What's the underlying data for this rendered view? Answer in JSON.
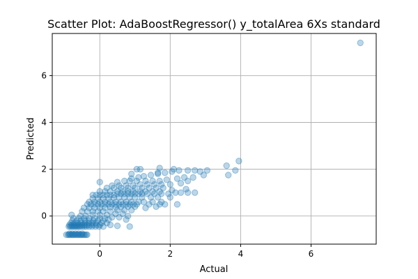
{
  "chart_data": {
    "type": "scatter",
    "title": "Scatter Plot: AdaBoostRegressor() y_totalArea 6Xs standard",
    "xlabel": "Actual",
    "ylabel": "Predicted",
    "xlim": [
      -1.35,
      7.85
    ],
    "ylim": [
      -1.2,
      7.8
    ],
    "xticks": [
      0,
      2,
      4,
      6
    ],
    "yticks": [
      0,
      2,
      4,
      6
    ],
    "grid": true,
    "marker_color": "#1f77b4",
    "marker_alpha": 0.3,
    "series": [
      {
        "points": [
          [
            -0.95,
            -0.8
          ],
          [
            -0.9,
            -0.8
          ],
          [
            -0.87,
            -0.8
          ],
          [
            -0.84,
            -0.8
          ],
          [
            -0.8,
            -0.8
          ],
          [
            -0.77,
            -0.8
          ],
          [
            -0.74,
            -0.8
          ],
          [
            -0.7,
            -0.8
          ],
          [
            -0.67,
            -0.8
          ],
          [
            -0.63,
            -0.8
          ],
          [
            -0.6,
            -0.8
          ],
          [
            -0.56,
            -0.8
          ],
          [
            -0.53,
            -0.8
          ],
          [
            -0.5,
            -0.8
          ],
          [
            -0.46,
            -0.8
          ],
          [
            -0.43,
            -0.8
          ],
          [
            -0.39,
            -0.8
          ],
          [
            -0.36,
            -0.8
          ],
          [
            -0.86,
            -0.75
          ],
          [
            -0.78,
            -0.75
          ],
          [
            -0.69,
            -0.75
          ],
          [
            -0.6,
            -0.75
          ],
          [
            -0.5,
            -0.75
          ],
          [
            -0.88,
            -0.45
          ],
          [
            -0.84,
            -0.45
          ],
          [
            -0.8,
            -0.45
          ],
          [
            -0.76,
            -0.45
          ],
          [
            -0.72,
            -0.45
          ],
          [
            -0.68,
            -0.45
          ],
          [
            -0.64,
            -0.45
          ],
          [
            -0.6,
            -0.45
          ],
          [
            -0.56,
            -0.45
          ],
          [
            -0.5,
            -0.45
          ],
          [
            -0.44,
            -0.45
          ],
          [
            -0.38,
            -0.45
          ],
          [
            -0.3,
            -0.45
          ],
          [
            -0.22,
            -0.45
          ],
          [
            -0.12,
            -0.45
          ],
          [
            -0.02,
            -0.45
          ],
          [
            0.1,
            -0.45
          ],
          [
            -0.86,
            -0.38
          ],
          [
            -0.8,
            -0.38
          ],
          [
            -0.74,
            -0.38
          ],
          [
            -0.68,
            -0.38
          ],
          [
            -0.62,
            -0.38
          ],
          [
            -0.56,
            -0.38
          ],
          [
            -0.5,
            -0.38
          ],
          [
            -0.44,
            -0.38
          ],
          [
            -0.38,
            -0.38
          ],
          [
            -0.3,
            -0.38
          ],
          [
            -0.2,
            -0.38
          ],
          [
            -0.1,
            -0.38
          ],
          [
            0.0,
            -0.38
          ],
          [
            0.3,
            -0.38
          ],
          [
            0.5,
            -0.42
          ],
          [
            0.85,
            -0.45
          ],
          [
            -0.82,
            -0.3
          ],
          [
            -0.72,
            -0.3
          ],
          [
            -0.62,
            -0.3
          ],
          [
            -0.52,
            -0.3
          ],
          [
            -0.42,
            -0.3
          ],
          [
            -0.32,
            -0.3
          ],
          [
            -0.22,
            -0.3
          ],
          [
            -0.12,
            -0.3
          ],
          [
            0.05,
            -0.3
          ],
          [
            0.2,
            -0.3
          ],
          [
            -0.78,
            -0.2
          ],
          [
            -0.66,
            -0.2
          ],
          [
            -0.54,
            -0.2
          ],
          [
            -0.42,
            -0.2
          ],
          [
            -0.3,
            -0.2
          ],
          [
            -0.18,
            -0.2
          ],
          [
            -0.06,
            -0.2
          ],
          [
            0.1,
            -0.2
          ],
          [
            0.25,
            -0.15
          ],
          [
            -0.75,
            -0.1
          ],
          [
            -0.6,
            -0.1
          ],
          [
            -0.45,
            -0.1
          ],
          [
            -0.3,
            -0.1
          ],
          [
            -0.15,
            -0.1
          ],
          [
            0.0,
            -0.1
          ],
          [
            0.15,
            -0.1
          ],
          [
            0.35,
            -0.05
          ],
          [
            0.55,
            -0.05
          ],
          [
            0.75,
            -0.15
          ],
          [
            0.8,
            0.0
          ],
          [
            -0.8,
            0.05
          ],
          [
            -0.55,
            0.0
          ],
          [
            -0.4,
            0.0
          ],
          [
            -0.2,
            0.05
          ],
          [
            0.0,
            0.05
          ],
          [
            0.2,
            0.05
          ],
          [
            0.45,
            0.1
          ],
          [
            0.65,
            0.1
          ],
          [
            -0.5,
            0.2
          ],
          [
            -0.35,
            0.2
          ],
          [
            -0.2,
            0.2
          ],
          [
            -0.05,
            0.2
          ],
          [
            0.1,
            0.2
          ],
          [
            0.3,
            0.2
          ],
          [
            0.5,
            0.25
          ],
          [
            0.7,
            0.25
          ],
          [
            0.9,
            0.25
          ],
          [
            -0.45,
            0.35
          ],
          [
            -0.3,
            0.35
          ],
          [
            -0.15,
            0.35
          ],
          [
            0.0,
            0.35
          ],
          [
            0.15,
            0.35
          ],
          [
            0.3,
            0.38
          ],
          [
            0.45,
            0.38
          ],
          [
            0.6,
            0.38
          ],
          [
            0.8,
            0.4
          ],
          [
            1.0,
            0.4
          ],
          [
            1.3,
            0.35
          ],
          [
            1.6,
            0.4
          ],
          [
            -0.35,
            0.5
          ],
          [
            -0.25,
            0.5
          ],
          [
            -0.15,
            0.5
          ],
          [
            -0.05,
            0.5
          ],
          [
            0.05,
            0.5
          ],
          [
            0.15,
            0.5
          ],
          [
            0.25,
            0.5
          ],
          [
            0.35,
            0.5
          ],
          [
            0.45,
            0.5
          ],
          [
            0.55,
            0.5
          ],
          [
            0.65,
            0.5
          ],
          [
            0.75,
            0.5
          ],
          [
            0.85,
            0.5
          ],
          [
            0.95,
            0.5
          ],
          [
            1.05,
            0.5
          ],
          [
            1.4,
            0.5
          ],
          [
            1.7,
            0.5
          ],
          [
            1.85,
            0.5
          ],
          [
            2.2,
            0.5
          ],
          [
            -0.3,
            0.6
          ],
          [
            -0.15,
            0.6
          ],
          [
            0.0,
            0.6
          ],
          [
            0.15,
            0.6
          ],
          [
            0.3,
            0.6
          ],
          [
            0.45,
            0.6
          ],
          [
            0.6,
            0.6
          ],
          [
            0.75,
            0.6
          ],
          [
            0.9,
            0.6
          ],
          [
            1.1,
            0.6
          ],
          [
            1.25,
            0.6
          ],
          [
            1.5,
            0.6
          ],
          [
            1.75,
            0.6
          ],
          [
            -0.2,
            0.75
          ],
          [
            -0.05,
            0.75
          ],
          [
            0.1,
            0.75
          ],
          [
            0.25,
            0.75
          ],
          [
            0.4,
            0.78
          ],
          [
            0.55,
            0.8
          ],
          [
            0.7,
            0.8
          ],
          [
            0.85,
            0.8
          ],
          [
            1.0,
            0.8
          ],
          [
            1.2,
            0.8
          ],
          [
            1.45,
            0.8
          ],
          [
            1.65,
            0.8
          ],
          [
            2.0,
            0.8
          ],
          [
            -0.2,
            0.9
          ],
          [
            -0.1,
            0.9
          ],
          [
            0.0,
            0.9
          ],
          [
            0.1,
            0.9
          ],
          [
            0.2,
            0.9
          ],
          [
            0.3,
            0.9
          ],
          [
            0.4,
            0.9
          ],
          [
            0.5,
            0.95
          ],
          [
            0.6,
            0.95
          ],
          [
            0.7,
            0.95
          ],
          [
            0.8,
            0.95
          ],
          [
            0.9,
            0.95
          ],
          [
            1.0,
            0.95
          ],
          [
            1.1,
            0.95
          ],
          [
            1.2,
            0.95
          ],
          [
            1.35,
            0.95
          ],
          [
            1.55,
            0.95
          ],
          [
            1.75,
            0.95
          ],
          [
            1.95,
            0.95
          ],
          [
            2.15,
            1.0
          ],
          [
            2.3,
            1.0
          ],
          [
            2.5,
            1.0
          ],
          [
            2.7,
            1.0
          ],
          [
            0.0,
            1.05
          ],
          [
            0.15,
            1.05
          ],
          [
            0.3,
            1.05
          ],
          [
            0.5,
            1.05
          ],
          [
            0.65,
            1.05
          ],
          [
            0.8,
            1.05
          ],
          [
            0.95,
            1.05
          ],
          [
            1.15,
            1.05
          ],
          [
            1.3,
            1.05
          ],
          [
            1.5,
            1.05
          ],
          [
            1.7,
            1.05
          ],
          [
            2.05,
            1.1
          ],
          [
            2.45,
            1.15
          ],
          [
            0.2,
            1.2
          ],
          [
            0.4,
            1.2
          ],
          [
            0.6,
            1.2
          ],
          [
            0.8,
            1.2
          ],
          [
            1.0,
            1.2
          ],
          [
            1.2,
            1.2
          ],
          [
            1.4,
            1.2
          ],
          [
            1.6,
            1.2
          ],
          [
            1.8,
            1.2
          ],
          [
            0.35,
            1.3
          ],
          [
            0.55,
            1.3
          ],
          [
            0.75,
            1.3
          ],
          [
            0.95,
            1.3
          ],
          [
            1.15,
            1.35
          ],
          [
            1.35,
            1.35
          ],
          [
            1.55,
            1.35
          ],
          [
            1.75,
            1.35
          ],
          [
            2.0,
            1.35
          ],
          [
            2.3,
            1.4
          ],
          [
            2.5,
            1.5
          ],
          [
            0.0,
            1.45
          ],
          [
            0.5,
            1.45
          ],
          [
            0.7,
            1.5
          ],
          [
            0.85,
            1.5
          ],
          [
            1.05,
            1.5
          ],
          [
            1.3,
            1.5
          ],
          [
            1.5,
            1.5
          ],
          [
            1.7,
            1.5
          ],
          [
            1.9,
            1.55
          ],
          [
            2.2,
            1.6
          ],
          [
            2.4,
            1.65
          ],
          [
            2.65,
            1.65
          ],
          [
            2.95,
            1.75
          ],
          [
            0.9,
            1.6
          ],
          [
            1.1,
            1.65
          ],
          [
            1.25,
            1.7
          ],
          [
            1.45,
            1.75
          ],
          [
            1.65,
            1.8
          ],
          [
            1.85,
            1.85
          ],
          [
            2.05,
            1.9
          ],
          [
            2.25,
            1.95
          ],
          [
            2.5,
            1.95
          ],
          [
            2.7,
            1.95
          ],
          [
            2.85,
            1.9
          ],
          [
            3.05,
            1.95
          ],
          [
            0.9,
            1.8
          ],
          [
            1.05,
            2.0
          ],
          [
            1.15,
            2.0
          ],
          [
            1.65,
            1.85
          ],
          [
            1.7,
            2.05
          ],
          [
            2.1,
            2.0
          ],
          [
            3.6,
            2.15
          ],
          [
            3.65,
            1.75
          ],
          [
            3.85,
            1.95
          ],
          [
            3.95,
            2.35
          ],
          [
            7.4,
            7.4
          ]
        ]
      }
    ]
  }
}
